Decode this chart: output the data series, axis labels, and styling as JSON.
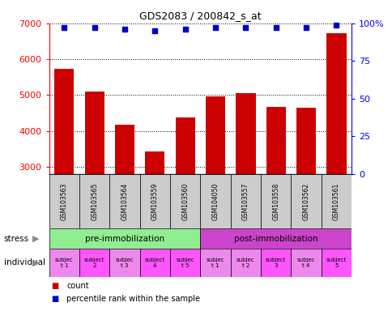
{
  "title": "GDS2083 / 200842_s_at",
  "samples": [
    "GSM103563",
    "GSM103565",
    "GSM103564",
    "GSM103559",
    "GSM103560",
    "GSM104050",
    "GSM103557",
    "GSM103558",
    "GSM103562",
    "GSM103561"
  ],
  "counts": [
    5740,
    5110,
    4170,
    3430,
    4370,
    4970,
    5060,
    4680,
    4640,
    6720
  ],
  "percentile_ranks": [
    97,
    97,
    96,
    95,
    96,
    97,
    97,
    97,
    97,
    99
  ],
  "bar_color": "#cc0000",
  "dot_color": "#0000cc",
  "ylim": [
    2800,
    7000
  ],
  "yticks": [
    3000,
    4000,
    5000,
    6000,
    7000
  ],
  "y2lim": [
    0,
    100
  ],
  "y2ticks": [
    0,
    25,
    50,
    75,
    100
  ],
  "stress_labels": [
    "pre-immobilization",
    "post-immobilization"
  ],
  "stress_colors": [
    "#90ee90",
    "#cc44cc"
  ],
  "individual_labels": [
    "subjec\nt 1",
    "subject\n2",
    "subjec\nt 3",
    "subject\n4",
    "subjec\nt 5",
    "subjec\nt 1",
    "subjec\nt 2",
    "subject\n3",
    "subjec\nt 4",
    "subject\n5"
  ],
  "individual_colors": [
    "#ee88ee",
    "#ff44ff",
    "#ee88ee",
    "#ff44ff",
    "#ff44ff",
    "#ee88ee",
    "#ee88ee",
    "#ff44ff",
    "#ee88ee",
    "#ff44ff"
  ],
  "sample_bg_color": "#cccccc",
  "legend_count_color": "#cc0000",
  "legend_dot_color": "#0000cc",
  "bg_white": "#ffffff"
}
